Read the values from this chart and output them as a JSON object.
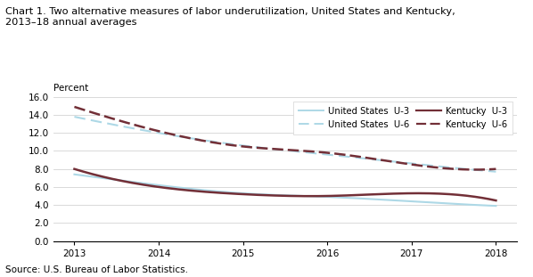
{
  "title_line1": "Chart 1. Two alternative measures of labor underutilization, United States and Kentucky,",
  "title_line2": "2013–18 annual averages",
  "ylabel": "Percent",
  "source": "Source: U.S. Bureau of Labor Statistics.",
  "years": [
    2013,
    2014,
    2015,
    2016,
    2017,
    2018
  ],
  "us_u3": [
    7.4,
    6.2,
    5.3,
    4.9,
    4.4,
    3.9
  ],
  "us_u6": [
    13.8,
    12.0,
    10.6,
    9.6,
    8.6,
    7.7
  ],
  "ky_u3": [
    8.0,
    6.0,
    5.2,
    5.0,
    5.3,
    4.5
  ],
  "ky_u6": [
    14.9,
    12.2,
    10.5,
    9.8,
    8.5,
    8.0
  ],
  "color_us": "#add8e6",
  "color_ky": "#722f37",
  "ylim": [
    0.0,
    16.0
  ],
  "yticks": [
    0.0,
    2.0,
    4.0,
    6.0,
    8.0,
    10.0,
    12.0,
    14.0,
    16.0
  ],
  "xticks": [
    2013,
    2014,
    2015,
    2016,
    2017,
    2018
  ],
  "fig_width": 5.98,
  "fig_height": 3.11,
  "dpi": 100
}
